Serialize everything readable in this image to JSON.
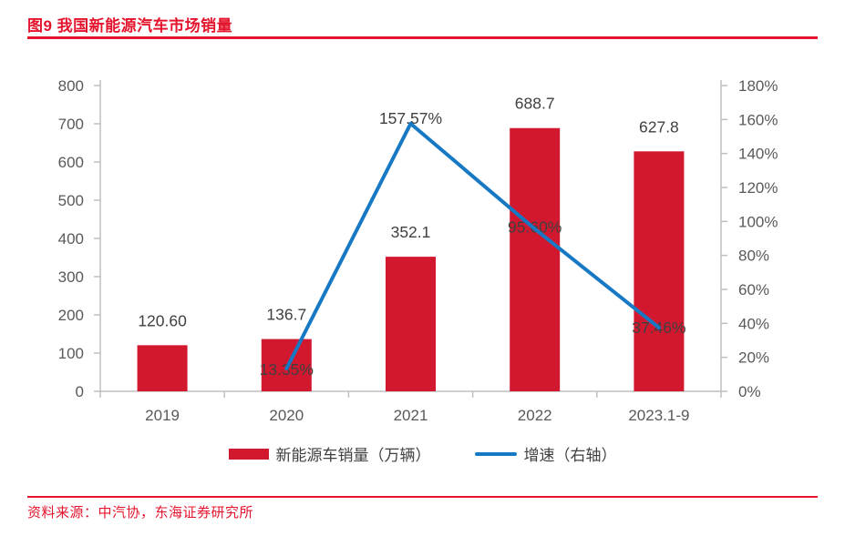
{
  "header": {
    "title": "图9  我国新能源汽车市场销量"
  },
  "footer": {
    "source": "资料来源：中汽协，东海证券研究所"
  },
  "colors": {
    "accent_red": "#e5142d",
    "bar_red": "#d2182f",
    "line_blue": "#1779c4",
    "axis_text": "#595959",
    "data_label": "#404040",
    "axis_line": "#bfbfbf"
  },
  "chart_data": {
    "type": "bar",
    "subtype": "combo-bar-line-dual-axis",
    "title": "图9  我国新能源汽车市场销量",
    "categories": [
      "2019",
      "2020",
      "2021",
      "2022",
      "2023.1-9"
    ],
    "series": [
      {
        "name": "新能源车销量（万辆）",
        "type": "bar",
        "axis": "left",
        "values": [
          120.6,
          136.7,
          352.1,
          688.7,
          627.8
        ],
        "value_labels": [
          "120.60",
          "136.7",
          "352.1",
          "688.7",
          "627.8"
        ]
      },
      {
        "name": "增速（右轴）",
        "type": "line",
        "axis": "right",
        "values": [
          null,
          13.35,
          157.57,
          95.6,
          37.46
        ],
        "value_labels": [
          null,
          "13.35%",
          "157.57%",
          "95.60%",
          "37.46%"
        ]
      }
    ],
    "left_axis": {
      "min": 0,
      "max": 800,
      "step": 100,
      "ticks": [
        "0",
        "100",
        "200",
        "300",
        "400",
        "500",
        "600",
        "700",
        "800"
      ]
    },
    "right_axis": {
      "min": 0,
      "max": 180,
      "step": 20,
      "ticks": [
        "0%",
        "20%",
        "40%",
        "60%",
        "80%",
        "100%",
        "120%",
        "140%",
        "160%",
        "180%"
      ]
    },
    "grid": false,
    "legend_position": "bottom"
  }
}
